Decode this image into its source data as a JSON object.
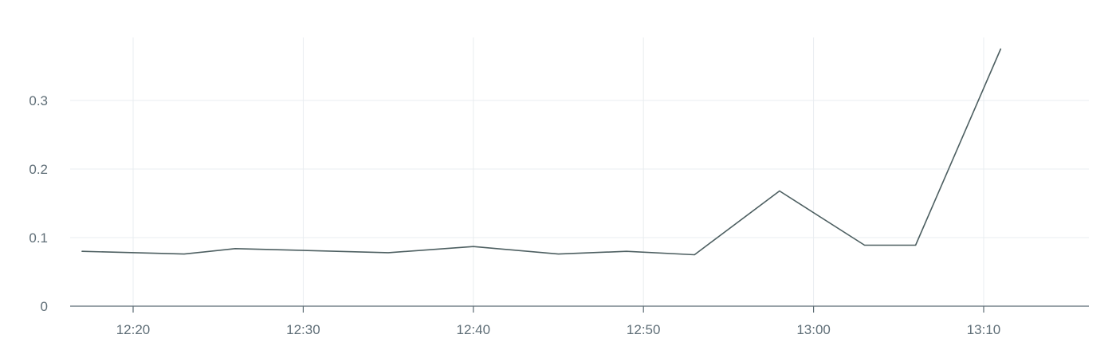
{
  "chart_data": {
    "type": "line",
    "title": "",
    "xlabel": "",
    "ylabel": "",
    "x_axis": {
      "type": "time",
      "range": [
        "12:17",
        "13:16"
      ],
      "ticks": [
        "12:20",
        "12:30",
        "12:40",
        "12:50",
        "13:00",
        "13:10"
      ]
    },
    "y_axis": {
      "range": [
        0,
        0.38
      ],
      "ticks": [
        0,
        0.1,
        0.2,
        0.3
      ],
      "tick_labels": [
        "0",
        "0.1",
        "0.2",
        "0.3"
      ]
    },
    "grid": true,
    "legend": "none",
    "series": [
      {
        "color": "#4d5f61",
        "points": [
          {
            "x": "12:17",
            "y": 0.08
          },
          {
            "x": "12:23",
            "y": 0.076
          },
          {
            "x": "12:26",
            "y": 0.084
          },
          {
            "x": "12:35",
            "y": 0.078
          },
          {
            "x": "12:40",
            "y": 0.087
          },
          {
            "x": "12:45",
            "y": 0.076
          },
          {
            "x": "12:49",
            "y": 0.08
          },
          {
            "x": "12:53",
            "y": 0.075
          },
          {
            "x": "12:58",
            "y": 0.168
          },
          {
            "x": "13:03",
            "y": 0.089
          },
          {
            "x": "13:06",
            "y": 0.089
          },
          {
            "x": "13:11",
            "y": 0.375
          }
        ]
      }
    ]
  },
  "colors": {
    "grid": "#e9edf0",
    "axis": "#5b6b73",
    "text": "#5f6e77",
    "line": "#4d5f61"
  }
}
